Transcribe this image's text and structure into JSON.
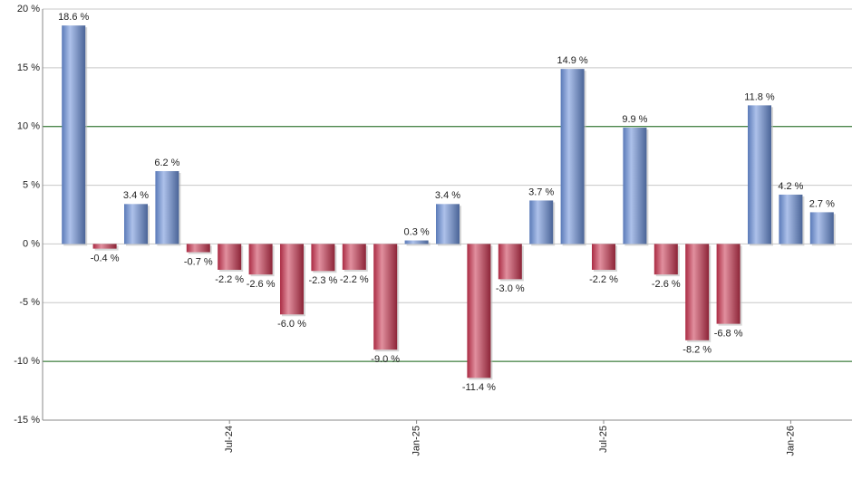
{
  "chart_data": {
    "type": "bar",
    "categories": [
      null,
      null,
      null,
      null,
      null,
      "Jul-24",
      null,
      null,
      null,
      null,
      null,
      "Jan-25",
      null,
      null,
      null,
      null,
      null,
      "Jul-25",
      null,
      null,
      null,
      null,
      null,
      "Jan-26",
      null
    ],
    "values": [
      18.6,
      -0.4,
      3.4,
      6.2,
      -0.7,
      -2.2,
      -2.6,
      -6.0,
      -2.3,
      -2.2,
      -9.0,
      0.3,
      3.4,
      -11.4,
      -3.0,
      3.7,
      14.9,
      -2.2,
      9.9,
      -2.6,
      -8.2,
      -6.8,
      11.8,
      4.2,
      2.7
    ],
    "value_labels": [
      "18.6 %",
      "-0.4 %",
      "3.4 %",
      "6.2 %",
      "-0.7 %",
      "-2.2 %",
      "-2.6 %",
      "-6.0 %",
      "-2.3 %",
      "-2.2 %",
      "-9.0 %",
      "0.3 %",
      "3.4 %",
      "-11.4 %",
      "-3.0 %",
      "3.7 %",
      "14.9 %",
      "-2.2 %",
      "9.9 %",
      "-2.6 %",
      "-8.2 %",
      "-6.8 %",
      "11.8 %",
      "4.2 %",
      "2.7 %"
    ],
    "positive_color": "#6a8fd8",
    "negative_color": "#c8334f",
    "ylim": [
      -15,
      20
    ],
    "yticks": [
      {
        "value": -15,
        "label": "-15 %"
      },
      {
        "value": -10,
        "label": "-10 %"
      },
      {
        "value": -5,
        "label": "-5 %"
      },
      {
        "value": 0,
        "label": "0 %"
      },
      {
        "value": 5,
        "label": "5 %"
      },
      {
        "value": 10,
        "label": "10 %"
      },
      {
        "value": 15,
        "label": "15 %"
      },
      {
        "value": 20,
        "label": "20 %"
      }
    ],
    "grid": true,
    "grid_color": "#c8c8c8",
    "reference_lines": [
      10,
      -10
    ],
    "reference_line_color": "#1a6b1a"
  }
}
